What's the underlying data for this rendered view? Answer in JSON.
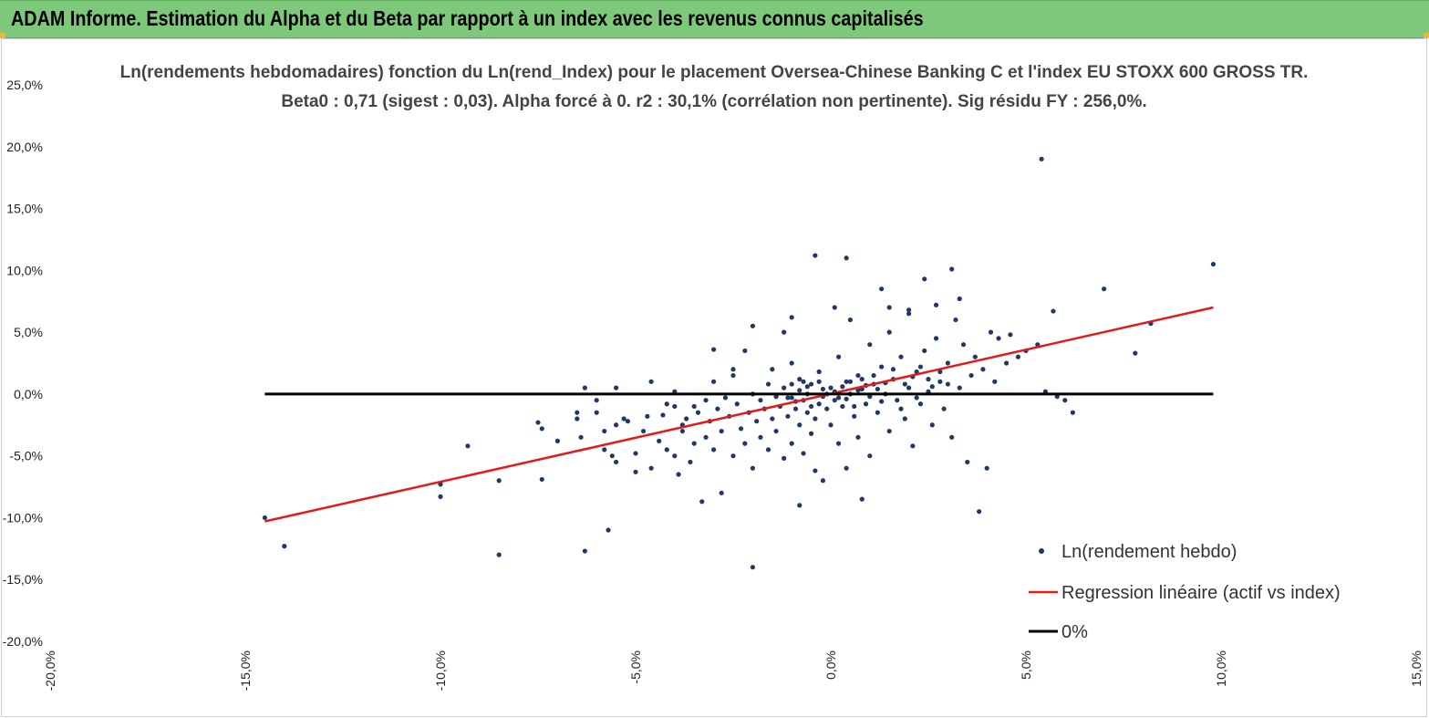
{
  "banner": {
    "title": "ADAM Informe. Estimation du Alpha et du Beta par rapport à un index avec les revenus connus capitalisés"
  },
  "colors": {
    "banner": "#7dc87a",
    "points": "#1f3864",
    "regression": "#e31a1c",
    "zero_line": "#000000"
  },
  "chart_data": {
    "type": "scatter",
    "title": "Ln(rendements hebdomadaires) fonction du Ln(rend_Index) pour le placement Oversea-Chinese Banking C et l'index EU STOXX 600 GROSS TR.",
    "subtitle": "Beta0 : 0,71 (sigest : 0,03). Alpha forcé à 0. r2 : 30,1% (corrélation non pertinente). Sig résidu FY : 256,0%.",
    "xlabel": "",
    "ylabel": "",
    "xlim": [
      -0.2,
      0.15
    ],
    "ylim": [
      -0.2,
      0.25
    ],
    "x_ticks": [
      "-20,0%",
      "-15,0%",
      "-10,0%",
      "-5,0%",
      "0,0%",
      "5,0%",
      "10,0%",
      "15,0%"
    ],
    "y_ticks": [
      "25,0%",
      "20,0%",
      "15,0%",
      "10,0%",
      "5,0%",
      "0,0%",
      "-5,0%",
      "-10,0%",
      "-15,0%",
      "-20,0%"
    ],
    "grid": false,
    "legend_position": "bottom-right",
    "series": [
      {
        "name": "Ln(rendement hebdo)",
        "kind": "points",
        "points": [
          [
            -0.145,
            -0.1
          ],
          [
            -0.14,
            -0.123
          ],
          [
            -0.1,
            -0.073
          ],
          [
            -0.1,
            -0.083
          ],
          [
            -0.093,
            -0.042
          ],
          [
            -0.085,
            -0.07
          ],
          [
            -0.085,
            -0.13
          ],
          [
            -0.075,
            -0.023
          ],
          [
            -0.074,
            -0.028
          ],
          [
            -0.074,
            -0.069
          ],
          [
            -0.07,
            -0.038
          ],
          [
            -0.065,
            -0.015
          ],
          [
            -0.065,
            -0.02
          ],
          [
            -0.064,
            -0.035
          ],
          [
            -0.063,
            0.005
          ],
          [
            -0.063,
            -0.127
          ],
          [
            -0.06,
            -0.005
          ],
          [
            -0.06,
            -0.015
          ],
          [
            -0.058,
            -0.03
          ],
          [
            -0.058,
            -0.045
          ],
          [
            -0.057,
            -0.11
          ],
          [
            -0.056,
            -0.05
          ],
          [
            -0.055,
            0.005
          ],
          [
            -0.055,
            -0.025
          ],
          [
            -0.055,
            -0.055
          ],
          [
            -0.053,
            -0.02
          ],
          [
            -0.052,
            -0.022
          ],
          [
            -0.05,
            -0.048
          ],
          [
            -0.05,
            -0.063
          ],
          [
            -0.048,
            -0.03
          ],
          [
            -0.047,
            -0.018
          ],
          [
            -0.046,
            -0.06
          ],
          [
            -0.046,
            0.01
          ],
          [
            -0.044,
            -0.038
          ],
          [
            -0.043,
            -0.017
          ],
          [
            -0.042,
            -0.008
          ],
          [
            -0.042,
            -0.045
          ],
          [
            -0.04,
            0.002
          ],
          [
            -0.04,
            -0.01
          ],
          [
            -0.04,
            -0.05
          ],
          [
            -0.039,
            -0.065
          ],
          [
            -0.038,
            -0.025
          ],
          [
            -0.038,
            -0.03
          ],
          [
            -0.037,
            -0.02
          ],
          [
            -0.036,
            -0.055
          ],
          [
            -0.035,
            -0.01
          ],
          [
            -0.035,
            -0.04
          ],
          [
            -0.034,
            -0.015
          ],
          [
            -0.033,
            -0.087
          ],
          [
            -0.032,
            -0.005
          ],
          [
            -0.032,
            -0.035
          ],
          [
            -0.031,
            -0.022
          ],
          [
            -0.03,
            0.01
          ],
          [
            -0.03,
            -0.045
          ],
          [
            -0.029,
            -0.012
          ],
          [
            -0.028,
            -0.03
          ],
          [
            -0.028,
            -0.08
          ],
          [
            -0.027,
            -0.003
          ],
          [
            -0.026,
            -0.018
          ],
          [
            -0.025,
            -0.05
          ],
          [
            -0.025,
            0.015
          ],
          [
            -0.024,
            -0.008
          ],
          [
            -0.023,
            -0.028
          ],
          [
            -0.022,
            -0.04
          ],
          [
            -0.022,
            0.035
          ],
          [
            -0.021,
            -0.015
          ],
          [
            -0.02,
            0.0
          ],
          [
            -0.02,
            -0.06
          ],
          [
            -0.02,
            -0.14
          ],
          [
            -0.019,
            -0.022
          ],
          [
            -0.018,
            -0.005
          ],
          [
            -0.018,
            -0.035
          ],
          [
            -0.017,
            -0.012
          ],
          [
            -0.016,
            0.008
          ],
          [
            -0.016,
            -0.045
          ],
          [
            -0.015,
            -0.02
          ],
          [
            -0.015,
            0.02
          ],
          [
            -0.014,
            -0.002
          ],
          [
            -0.014,
            -0.03
          ],
          [
            -0.013,
            -0.01
          ],
          [
            -0.012,
            -0.052
          ],
          [
            -0.012,
            0.005
          ],
          [
            -0.011,
            -0.018
          ],
          [
            -0.01,
            -0.003
          ],
          [
            -0.01,
            -0.04
          ],
          [
            -0.01,
            0.025
          ],
          [
            -0.009,
            -0.012
          ],
          [
            -0.008,
            -0.025
          ],
          [
            -0.008,
            0.012
          ],
          [
            -0.007,
            -0.005
          ],
          [
            -0.007,
            -0.048
          ],
          [
            -0.006,
            -0.015
          ],
          [
            -0.006,
            0.0
          ],
          [
            -0.005,
            -0.032
          ],
          [
            -0.005,
            0.008
          ],
          [
            -0.004,
            -0.02
          ],
          [
            -0.004,
            -0.062
          ],
          [
            -0.003,
            -0.008
          ],
          [
            -0.003,
            0.018
          ],
          [
            -0.002,
            -0.002
          ],
          [
            -0.002,
            -0.07
          ],
          [
            -0.001,
            -0.012
          ],
          [
            0.0,
            0.005
          ],
          [
            0.0,
            -0.025
          ],
          [
            0.001,
            -0.005
          ],
          [
            0.002,
            0.03
          ],
          [
            0.002,
            -0.04
          ],
          [
            0.003,
            -0.01
          ],
          [
            0.004,
            0.01
          ],
          [
            0.004,
            -0.06
          ],
          [
            0.005,
            0.0
          ],
          [
            0.005,
            0.06
          ],
          [
            0.006,
            -0.018
          ],
          [
            0.007,
            0.015
          ],
          [
            0.007,
            -0.035
          ],
          [
            0.008,
            0.004
          ],
          [
            0.009,
            -0.008
          ],
          [
            0.01,
            0.04
          ],
          [
            0.01,
            -0.05
          ],
          [
            0.011,
            0.008
          ],
          [
            0.012,
            -0.015
          ],
          [
            0.013,
            0.022
          ],
          [
            0.014,
            0.0
          ],
          [
            0.015,
            -0.03
          ],
          [
            0.015,
            0.05
          ],
          [
            0.016,
            0.012
          ],
          [
            0.017,
            -0.005
          ],
          [
            0.018,
            0.03
          ],
          [
            0.019,
            -0.02
          ],
          [
            0.02,
            0.005
          ],
          [
            0.02,
            0.065
          ],
          [
            0.021,
            -0.042
          ],
          [
            0.022,
            0.018
          ],
          [
            0.023,
            -0.008
          ],
          [
            0.024,
            0.035
          ],
          [
            0.025,
            0.002
          ],
          [
            0.026,
            -0.025
          ],
          [
            0.027,
            0.045
          ],
          [
            0.028,
            0.01
          ],
          [
            0.029,
            -0.012
          ],
          [
            0.03,
            0.025
          ],
          [
            0.031,
            -0.035
          ],
          [
            0.032,
            0.06
          ],
          [
            0.033,
            0.005
          ],
          [
            0.034,
            0.04
          ],
          [
            0.035,
            -0.055
          ],
          [
            0.036,
            0.015
          ],
          [
            0.037,
            0.03
          ],
          [
            0.038,
            -0.095
          ],
          [
            0.039,
            0.02
          ],
          [
            0.04,
            -0.06
          ],
          [
            0.041,
            0.05
          ],
          [
            0.042,
            0.01
          ],
          [
            0.043,
            0.045
          ],
          [
            0.045,
            0.025
          ],
          [
            0.046,
            0.048
          ],
          [
            0.048,
            0.03
          ],
          [
            0.05,
            0.035
          ],
          [
            0.053,
            0.04
          ],
          [
            0.054,
            0.19
          ],
          [
            0.055,
            0.002
          ],
          [
            0.057,
            0.067
          ],
          [
            0.058,
            -0.002
          ],
          [
            0.06,
            -0.005
          ],
          [
            0.062,
            -0.015
          ],
          [
            0.07,
            0.085
          ],
          [
            0.078,
            0.033
          ],
          [
            0.082,
            0.057
          ],
          [
            0.098,
            0.105
          ],
          [
            -0.004,
            0.112
          ],
          [
            0.004,
            0.11
          ],
          [
            0.013,
            0.085
          ],
          [
            0.024,
            0.093
          ],
          [
            0.031,
            0.101
          ],
          [
            -0.012,
            0.05
          ],
          [
            -0.02,
            0.055
          ],
          [
            -0.01,
            0.062
          ],
          [
            0.001,
            0.07
          ],
          [
            0.015,
            0.07
          ],
          [
            0.02,
            0.068
          ],
          [
            0.027,
            0.072
          ],
          [
            0.033,
            0.077
          ],
          [
            -0.025,
            0.02
          ],
          [
            -0.03,
            0.036
          ],
          [
            -0.008,
            -0.09
          ],
          [
            0.008,
            -0.085
          ],
          [
            -0.001,
            0.0
          ],
          [
            0.001,
            0.002
          ],
          [
            0.002,
            -0.003
          ],
          [
            0.003,
            0.006
          ],
          [
            -0.002,
            0.004
          ],
          [
            0.004,
            -0.004
          ],
          [
            0.005,
            0.01
          ],
          [
            0.006,
            -0.01
          ],
          [
            0.007,
            0.003
          ],
          [
            0.008,
            0.012
          ],
          [
            0.009,
            0.007
          ],
          [
            0.01,
            -0.002
          ],
          [
            0.011,
            0.015
          ],
          [
            0.012,
            0.004
          ],
          [
            0.013,
            -0.006
          ],
          [
            0.014,
            0.009
          ],
          [
            -0.003,
            0.01
          ],
          [
            -0.005,
            -0.01
          ],
          [
            -0.006,
            0.006
          ],
          [
            -0.007,
            0.01
          ],
          [
            -0.008,
            0.003
          ],
          [
            -0.009,
            -0.006
          ],
          [
            -0.01,
            0.008
          ],
          [
            -0.011,
            -0.003
          ],
          [
            0.016,
            0.02
          ],
          [
            0.018,
            -0.012
          ],
          [
            0.019,
            0.008
          ],
          [
            0.021,
            0.014
          ],
          [
            0.022,
            -0.003
          ],
          [
            0.023,
            0.022
          ],
          [
            0.025,
            0.012
          ],
          [
            0.026,
            0.006
          ],
          [
            0.028,
            0.018
          ],
          [
            0.03,
            0.008
          ]
        ]
      },
      {
        "name": "Regression linéaire (actif vs index)",
        "kind": "line",
        "points": [
          [
            -0.145,
            -0.103
          ],
          [
            0.098,
            0.07
          ]
        ]
      },
      {
        "name": "0%",
        "kind": "line",
        "points": [
          [
            -0.145,
            0.0
          ],
          [
            0.098,
            0.0
          ]
        ]
      }
    ]
  }
}
